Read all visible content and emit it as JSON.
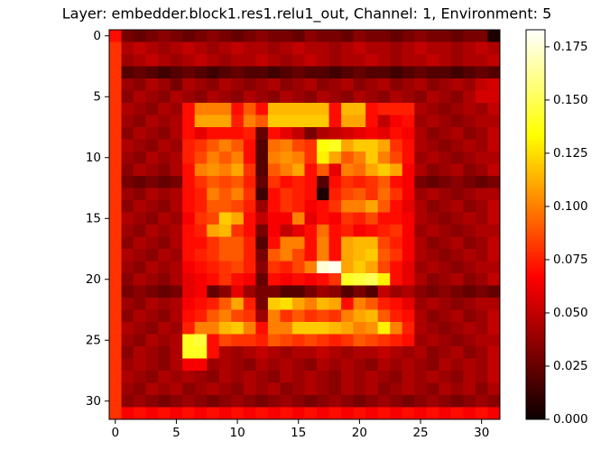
{
  "chart_data": {
    "type": "heatmap",
    "title": "Layer: embedder.block1.res1.relu1_out, Channel: 1, Environment: 5",
    "colormap": "hot",
    "xlim": [
      -0.5,
      31.5
    ],
    "ylim": [
      31.5,
      -0.5
    ],
    "xticks": [
      0,
      5,
      10,
      15,
      20,
      25,
      30
    ],
    "yticks": [
      0,
      5,
      10,
      15,
      20,
      25,
      30
    ],
    "clim": [
      0,
      0.183
    ],
    "cticks": [
      {
        "value": 0,
        "label": "0.000"
      },
      {
        "value": 0.025,
        "label": "0.025"
      },
      {
        "value": 0.05,
        "label": "0.050"
      },
      {
        "value": 0.075,
        "label": "0.075"
      },
      {
        "value": 0.1,
        "label": "0.100"
      },
      {
        "value": 0.125,
        "label": "0.125"
      },
      {
        "value": 0.15,
        "label": "0.150"
      },
      {
        "value": 0.175,
        "label": "0.175"
      }
    ],
    "z": [
      [
        0.07,
        0.03,
        0.025,
        0.03,
        0.035,
        0.03,
        0.025,
        0.03,
        0.035,
        0.03,
        0.025,
        0.03,
        0.035,
        0.03,
        0.03,
        0.025,
        0.035,
        0.03,
        0.03,
        0.025,
        0.035,
        0.03,
        0.03,
        0.025,
        0.03,
        0.035,
        0.03,
        0.03,
        0.025,
        0.03,
        0.03,
        0.005
      ],
      [
        0.08,
        0.045,
        0.05,
        0.045,
        0.04,
        0.045,
        0.05,
        0.045,
        0.04,
        0.045,
        0.05,
        0.045,
        0.045,
        0.04,
        0.045,
        0.05,
        0.045,
        0.045,
        0.04,
        0.045,
        0.05,
        0.045,
        0.045,
        0.04,
        0.045,
        0.05,
        0.045,
        0.045,
        0.04,
        0.045,
        0.05,
        0.045
      ],
      [
        0.08,
        0.04,
        0.045,
        0.05,
        0.045,
        0.04,
        0.045,
        0.05,
        0.045,
        0.04,
        0.045,
        0.045,
        0.05,
        0.045,
        0.04,
        0.045,
        0.05,
        0.045,
        0.04,
        0.045,
        0.045,
        0.05,
        0.045,
        0.04,
        0.045,
        0.045,
        0.05,
        0.045,
        0.04,
        0.045,
        0.045,
        0.05
      ],
      [
        0.08,
        0.02,
        0.025,
        0.02,
        0.015,
        0.02,
        0.025,
        0.02,
        0.015,
        0.02,
        0.025,
        0.02,
        0.02,
        0.015,
        0.02,
        0.025,
        0.02,
        0.02,
        0.015,
        0.02,
        0.025,
        0.02,
        0.02,
        0.015,
        0.02,
        0.025,
        0.02,
        0.02,
        0.015,
        0.02,
        0.025,
        0.02
      ],
      [
        0.08,
        0.04,
        0.035,
        0.045,
        0.04,
        0.03,
        0.045,
        0.04,
        0.035,
        0.045,
        0.04,
        0.035,
        0.04,
        0.045,
        0.035,
        0.04,
        0.045,
        0.035,
        0.04,
        0.045,
        0.035,
        0.04,
        0.045,
        0.035,
        0.04,
        0.045,
        0.035,
        0.04,
        0.045,
        0.04,
        0.05,
        0.055
      ],
      [
        0.08,
        0.035,
        0.045,
        0.04,
        0.035,
        0.045,
        0.04,
        0.035,
        0.045,
        0.04,
        0.035,
        0.045,
        0.04,
        0.035,
        0.045,
        0.04,
        0.035,
        0.045,
        0.04,
        0.035,
        0.045,
        0.04,
        0.035,
        0.045,
        0.04,
        0.035,
        0.045,
        0.04,
        0.035,
        0.045,
        0.055,
        0.055
      ],
      [
        0.08,
        0.045,
        0.04,
        0.035,
        0.045,
        0.04,
        0.07,
        0.1,
        0.1,
        0.1,
        0.07,
        0.09,
        0.07,
        0.115,
        0.115,
        0.115,
        0.115,
        0.115,
        0.07,
        0.115,
        0.115,
        0.07,
        0.075,
        0.075,
        0.075,
        0.045,
        0.04,
        0.035,
        0.04,
        0.045,
        0.04,
        0.05
      ],
      [
        0.08,
        0.04,
        0.035,
        0.045,
        0.04,
        0.045,
        0.07,
        0.11,
        0.11,
        0.11,
        0.075,
        0.1,
        0.09,
        0.12,
        0.12,
        0.12,
        0.12,
        0.12,
        0.07,
        0.11,
        0.11,
        0.07,
        0.05,
        0.065,
        0.07,
        0.04,
        0.045,
        0.04,
        0.035,
        0.04,
        0.045,
        0.045
      ],
      [
        0.08,
        0.035,
        0.045,
        0.04,
        0.035,
        0.045,
        0.07,
        0.06,
        0.07,
        0.07,
        0.07,
        0.075,
        0.025,
        0.07,
        0.06,
        0.05,
        0.03,
        0.045,
        0.05,
        0.055,
        0.06,
        0.065,
        0.06,
        0.07,
        0.065,
        0.045,
        0.035,
        0.04,
        0.045,
        0.035,
        0.04,
        0.05
      ],
      [
        0.08,
        0.045,
        0.04,
        0.035,
        0.045,
        0.04,
        0.075,
        0.08,
        0.09,
        0.1,
        0.09,
        0.07,
        0.02,
        0.095,
        0.1,
        0.085,
        0.08,
        0.135,
        0.14,
        0.11,
        0.12,
        0.12,
        0.11,
        0.08,
        0.07,
        0.045,
        0.04,
        0.035,
        0.04,
        0.045,
        0.04,
        0.05
      ],
      [
        0.08,
        0.04,
        0.035,
        0.045,
        0.04,
        0.045,
        0.075,
        0.085,
        0.1,
        0.09,
        0.1,
        0.07,
        0.02,
        0.1,
        0.105,
        0.1,
        0.08,
        0.13,
        0.11,
        0.09,
        0.1,
        0.12,
        0.1,
        0.085,
        0.07,
        0.04,
        0.045,
        0.04,
        0.035,
        0.04,
        0.045,
        0.045
      ],
      [
        0.08,
        0.035,
        0.045,
        0.04,
        0.035,
        0.045,
        0.07,
        0.1,
        0.105,
        0.1,
        0.11,
        0.08,
        0.02,
        0.09,
        0.1,
        0.11,
        0.07,
        0.09,
        0.06,
        0.1,
        0.095,
        0.11,
        0.12,
        0.11,
        0.065,
        0.045,
        0.035,
        0.04,
        0.045,
        0.035,
        0.04,
        0.05
      ],
      [
        0.08,
        0.03,
        0.025,
        0.03,
        0.025,
        0.03,
        0.07,
        0.08,
        0.09,
        0.085,
        0.09,
        0.075,
        0.025,
        0.08,
        0.07,
        0.075,
        0.07,
        0.02,
        0.07,
        0.08,
        0.075,
        0.08,
        0.09,
        0.07,
        0.065,
        0.03,
        0.025,
        0.03,
        0.035,
        0.03,
        0.025,
        0.03
      ],
      [
        0.08,
        0.04,
        0.035,
        0.045,
        0.04,
        0.045,
        0.07,
        0.075,
        0.1,
        0.09,
        0.1,
        0.08,
        0.015,
        0.07,
        0.08,
        0.075,
        0.07,
        0.005,
        0.075,
        0.085,
        0.09,
        0.08,
        0.095,
        0.08,
        0.065,
        0.04,
        0.045,
        0.04,
        0.035,
        0.04,
        0.045,
        0.045
      ],
      [
        0.08,
        0.035,
        0.045,
        0.04,
        0.035,
        0.045,
        0.07,
        0.075,
        0.09,
        0.09,
        0.085,
        0.075,
        0.04,
        0.07,
        0.08,
        0.075,
        0.065,
        0.07,
        0.08,
        0.1,
        0.1,
        0.11,
        0.09,
        0.07,
        0.06,
        0.045,
        0.035,
        0.04,
        0.045,
        0.035,
        0.04,
        0.05
      ],
      [
        0.08,
        0.045,
        0.04,
        0.035,
        0.045,
        0.04,
        0.065,
        0.08,
        0.085,
        0.12,
        0.11,
        0.07,
        0.05,
        0.065,
        0.065,
        0.1,
        0.06,
        0.07,
        0.065,
        0.08,
        0.075,
        0.085,
        0.07,
        0.07,
        0.065,
        0.045,
        0.04,
        0.035,
        0.04,
        0.045,
        0.04,
        0.05
      ],
      [
        0.08,
        0.04,
        0.035,
        0.045,
        0.04,
        0.045,
        0.07,
        0.075,
        0.11,
        0.115,
        0.08,
        0.07,
        0.03,
        0.065,
        0.05,
        0.06,
        0.07,
        0.095,
        0.07,
        0.075,
        0.065,
        0.07,
        0.075,
        0.08,
        0.065,
        0.04,
        0.045,
        0.04,
        0.035,
        0.04,
        0.045,
        0.045
      ],
      [
        0.08,
        0.035,
        0.045,
        0.04,
        0.035,
        0.045,
        0.07,
        0.07,
        0.08,
        0.09,
        0.09,
        0.075,
        0.02,
        0.07,
        0.1,
        0.1,
        0.07,
        0.1,
        0.07,
        0.11,
        0.115,
        0.115,
        0.085,
        0.075,
        0.065,
        0.045,
        0.035,
        0.04,
        0.045,
        0.035,
        0.04,
        0.05
      ],
      [
        0.08,
        0.045,
        0.04,
        0.035,
        0.045,
        0.04,
        0.07,
        0.075,
        0.08,
        0.09,
        0.09,
        0.075,
        0.03,
        0.09,
        0.1,
        0.085,
        0.07,
        0.1,
        0.07,
        0.11,
        0.115,
        0.12,
        0.09,
        0.08,
        0.065,
        0.045,
        0.04,
        0.035,
        0.04,
        0.045,
        0.04,
        0.05
      ],
      [
        0.08,
        0.04,
        0.035,
        0.045,
        0.04,
        0.045,
        0.065,
        0.07,
        0.075,
        0.08,
        0.085,
        0.075,
        0.035,
        0.08,
        0.075,
        0.085,
        0.1,
        0.175,
        0.18,
        0.11,
        0.12,
        0.11,
        0.085,
        0.07,
        0.06,
        0.04,
        0.045,
        0.04,
        0.035,
        0.04,
        0.045,
        0.045
      ],
      [
        0.08,
        0.035,
        0.045,
        0.04,
        0.035,
        0.045,
        0.06,
        0.065,
        0.07,
        0.08,
        0.07,
        0.065,
        0.025,
        0.07,
        0.065,
        0.07,
        0.065,
        0.07,
        0.08,
        0.14,
        0.145,
        0.15,
        0.13,
        0.07,
        0.06,
        0.045,
        0.035,
        0.04,
        0.045,
        0.035,
        0.04,
        0.05
      ],
      [
        0.08,
        0.03,
        0.035,
        0.03,
        0.025,
        0.03,
        0.06,
        0.065,
        0.025,
        0.035,
        0.06,
        0.04,
        0.03,
        0.03,
        0.02,
        0.02,
        0.03,
        0.04,
        0.035,
        0.02,
        0.03,
        0.02,
        0.05,
        0.04,
        0.045,
        0.035,
        0.03,
        0.035,
        0.03,
        0.025,
        0.03,
        0.025
      ],
      [
        0.08,
        0.04,
        0.035,
        0.045,
        0.04,
        0.045,
        0.065,
        0.07,
        0.075,
        0.09,
        0.11,
        0.075,
        0.03,
        0.12,
        0.125,
        0.11,
        0.1,
        0.115,
        0.11,
        0.07,
        0.1,
        0.09,
        0.075,
        0.07,
        0.06,
        0.04,
        0.045,
        0.04,
        0.035,
        0.04,
        0.045,
        0.045
      ],
      [
        0.08,
        0.035,
        0.045,
        0.04,
        0.035,
        0.045,
        0.07,
        0.075,
        0.09,
        0.1,
        0.085,
        0.08,
        0.04,
        0.1,
        0.08,
        0.09,
        0.08,
        0.085,
        0.08,
        0.1,
        0.11,
        0.115,
        0.09,
        0.075,
        0.07,
        0.045,
        0.035,
        0.04,
        0.045,
        0.035,
        0.04,
        0.05
      ],
      [
        0.08,
        0.045,
        0.04,
        0.035,
        0.045,
        0.04,
        0.075,
        0.1,
        0.1,
        0.115,
        0.12,
        0.1,
        0.07,
        0.1,
        0.1,
        0.12,
        0.12,
        0.12,
        0.115,
        0.11,
        0.1,
        0.105,
        0.13,
        0.1,
        0.075,
        0.045,
        0.04,
        0.035,
        0.04,
        0.045,
        0.04,
        0.05
      ],
      [
        0.08,
        0.04,
        0.035,
        0.045,
        0.04,
        0.045,
        0.14,
        0.145,
        0.07,
        0.085,
        0.08,
        0.08,
        0.075,
        0.09,
        0.085,
        0.08,
        0.085,
        0.08,
        0.075,
        0.08,
        0.09,
        0.085,
        0.08,
        0.075,
        0.07,
        0.04,
        0.045,
        0.04,
        0.035,
        0.04,
        0.045,
        0.045
      ],
      [
        0.08,
        0.035,
        0.045,
        0.04,
        0.035,
        0.045,
        0.14,
        0.14,
        0.07,
        0.045,
        0.04,
        0.045,
        0.05,
        0.045,
        0.04,
        0.045,
        0.045,
        0.05,
        0.045,
        0.04,
        0.045,
        0.045,
        0.05,
        0.045,
        0.04,
        0.045,
        0.035,
        0.04,
        0.045,
        0.035,
        0.04,
        0.05
      ],
      [
        0.08,
        0.04,
        0.045,
        0.04,
        0.035,
        0.045,
        0.065,
        0.065,
        0.04,
        0.045,
        0.04,
        0.035,
        0.045,
        0.04,
        0.045,
        0.04,
        0.035,
        0.045,
        0.04,
        0.045,
        0.04,
        0.035,
        0.045,
        0.04,
        0.045,
        0.04,
        0.035,
        0.045,
        0.04,
        0.045,
        0.04,
        0.05
      ],
      [
        0.08,
        0.045,
        0.04,
        0.035,
        0.045,
        0.04,
        0.045,
        0.04,
        0.035,
        0.045,
        0.04,
        0.045,
        0.04,
        0.035,
        0.045,
        0.04,
        0.045,
        0.04,
        0.035,
        0.045,
        0.04,
        0.045,
        0.04,
        0.035,
        0.045,
        0.04,
        0.045,
        0.04,
        0.035,
        0.045,
        0.04,
        0.05
      ],
      [
        0.08,
        0.04,
        0.035,
        0.045,
        0.04,
        0.045,
        0.035,
        0.04,
        0.045,
        0.04,
        0.035,
        0.045,
        0.04,
        0.045,
        0.035,
        0.04,
        0.045,
        0.04,
        0.035,
        0.045,
        0.04,
        0.045,
        0.035,
        0.04,
        0.045,
        0.04,
        0.035,
        0.045,
        0.04,
        0.045,
        0.035,
        0.045
      ],
      [
        0.08,
        0.035,
        0.04,
        0.035,
        0.03,
        0.035,
        0.04,
        0.035,
        0.03,
        0.035,
        0.04,
        0.035,
        0.03,
        0.035,
        0.04,
        0.035,
        0.03,
        0.035,
        0.04,
        0.035,
        0.03,
        0.035,
        0.04,
        0.035,
        0.03,
        0.035,
        0.04,
        0.035,
        0.03,
        0.035,
        0.04,
        0.035
      ],
      [
        0.08,
        0.065,
        0.07,
        0.065,
        0.07,
        0.065,
        0.07,
        0.065,
        0.07,
        0.065,
        0.07,
        0.065,
        0.07,
        0.065,
        0.07,
        0.065,
        0.07,
        0.065,
        0.07,
        0.065,
        0.07,
        0.065,
        0.07,
        0.065,
        0.07,
        0.065,
        0.07,
        0.065,
        0.07,
        0.065,
        0.07,
        0.065
      ]
    ]
  }
}
